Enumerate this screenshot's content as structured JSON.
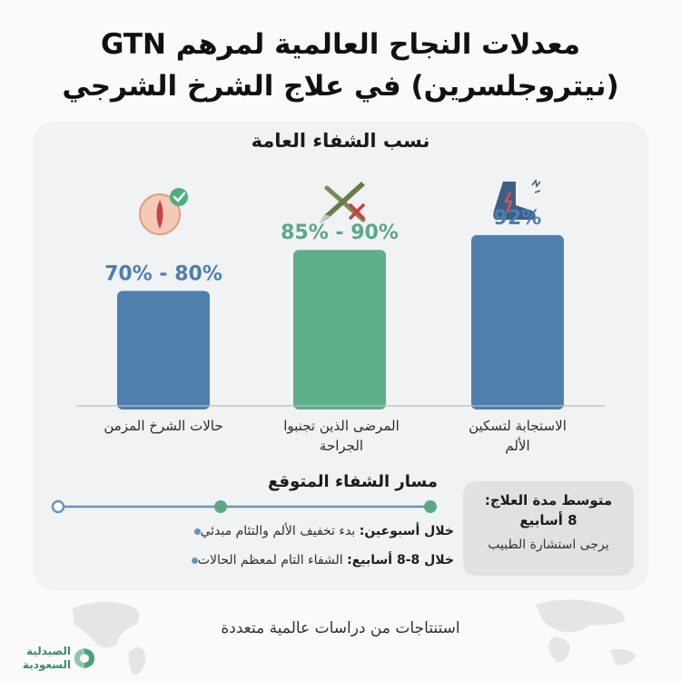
{
  "title": {
    "line1": "معدلات النجاح العالمية لمرهم GTN",
    "line2": "(نيتروجلسرين) في علاج الشرخ الشرجي"
  },
  "section_title": "نسب الشفاء العامة",
  "chart_data": {
    "type": "bar",
    "title": "نسب الشفاء العامة",
    "categories": [
      "حالات الشرخ المزمن",
      "المرضى الذين تجنبوا الجراحة",
      "الاستجابة لتسكين الألم"
    ],
    "category_lines": [
      [
        "حالات الشرخ المزمن"
      ],
      [
        "المرضى الذين تجنبوا",
        "الجراحة"
      ],
      [
        "الاستجابة لتسكين",
        "الألم"
      ]
    ],
    "values": [
      75,
      87.5,
      92
    ],
    "ranges": [
      [
        70,
        80
      ],
      [
        85,
        90
      ],
      [
        92,
        92
      ]
    ],
    "data_labels": [
      "70% - 80%",
      "85% - 90%",
      "92%"
    ],
    "colors": [
      "#4f7fad",
      "#5dae8b",
      "#4f7fad"
    ],
    "label_colors": [
      "#4d7fb0",
      "#5aa886",
      "#4d7fb0"
    ],
    "icons": [
      "fissure-check-icon",
      "scalpel-crossed-icon",
      "pain-relief-icon"
    ],
    "ylim": [
      0,
      100
    ],
    "xlabel": "",
    "ylabel": "",
    "grid": false
  },
  "recovery": {
    "title": "مسار الشفاء المتوقع",
    "bullets": [
      {
        "bold": "خلال أسبوعين:",
        "text": " بدء تخفيف الألم والتئام مبدئي"
      },
      {
        "bold": "خلال 8-8 أسابيع:",
        "text": " الشفاء التام لمعظم الحالات"
      }
    ],
    "timeline_color": "#5aa886"
  },
  "duration": {
    "label": "متوسط مدة العلاج:",
    "value": "8 أسابيع",
    "note": "يرجى استشارة الطبيب"
  },
  "footer": "استنتاجات من دراسات عالمية متعددة",
  "logo": {
    "line1": "الصيدلية",
    "line2": "السعودية"
  }
}
